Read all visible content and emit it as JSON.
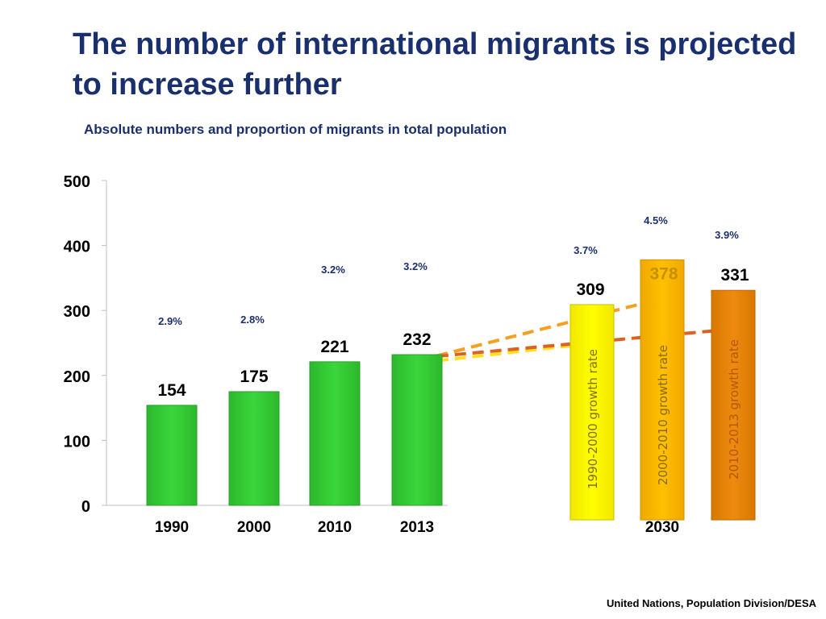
{
  "slide": {
    "title": "The number of international migrants is projected to increase further",
    "subtitle": "Absolute numbers  and proportion of migrants in total population",
    "source": "United Nations, Population Division/DESA"
  },
  "chart_data": {
    "type": "bar",
    "ylim": [
      0,
      500
    ],
    "yticks": [
      0,
      100,
      200,
      300,
      400,
      500
    ],
    "grid": false,
    "colors": {
      "historical": "#3ad63a",
      "projection_1990_2000": "#ffff00",
      "projection_2000_2010": "#ffc000",
      "projection_2010_2013": "#ee8a10",
      "line_1990_2000": "#ffe020",
      "line_2000_2010": "#f5a020",
      "line_2010_2013": "#e06020",
      "value_highlight": "#c89000"
    },
    "historical": [
      {
        "category": "1990",
        "value": 154,
        "share": "2.9%"
      },
      {
        "category": "2000",
        "value": 175,
        "share": "2.8%"
      },
      {
        "category": "2010",
        "value": 221,
        "share": "3.2%"
      },
      {
        "category": "2013",
        "value": 232,
        "share": "3.2%"
      }
    ],
    "projection_category": "2030",
    "projections": [
      {
        "label": "1990-2000 growth rate",
        "value": 309,
        "share": "3.7%"
      },
      {
        "label": "2000-2010 growth rate",
        "value": 378,
        "share": "4.5%"
      },
      {
        "label": "2010-2013 growth rate",
        "value": 331,
        "share": "3.9%"
      }
    ]
  }
}
